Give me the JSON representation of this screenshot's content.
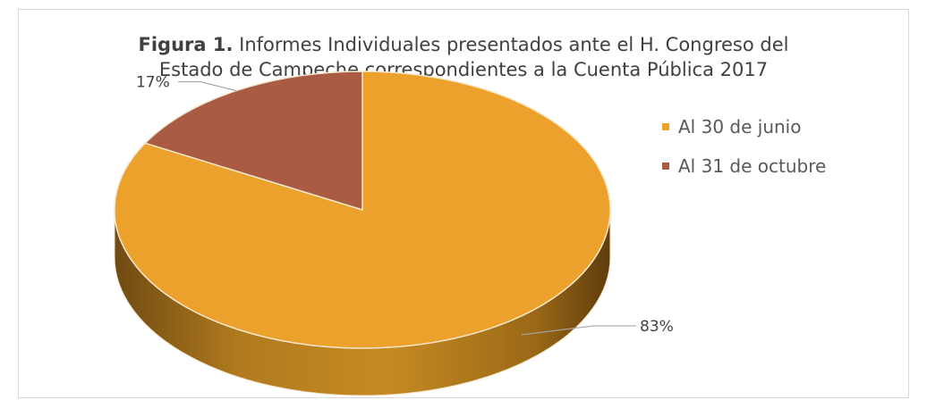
{
  "title": {
    "prefix": "Figura 1.",
    "text": " Informes Individuales presentados ante el H. Congreso del",
    "line2": "Estado de Campeche correspondientes a la Cuenta Pública 2017"
  },
  "chart_data": {
    "type": "pie",
    "style": "3d",
    "categories": [
      "Al 30 de junio",
      "Al 31 de octubre"
    ],
    "values": [
      83,
      17
    ],
    "labels": [
      "83%",
      "17%"
    ],
    "colors": [
      "#EDA12D",
      "#A95B44"
    ],
    "legend_position": "right"
  }
}
